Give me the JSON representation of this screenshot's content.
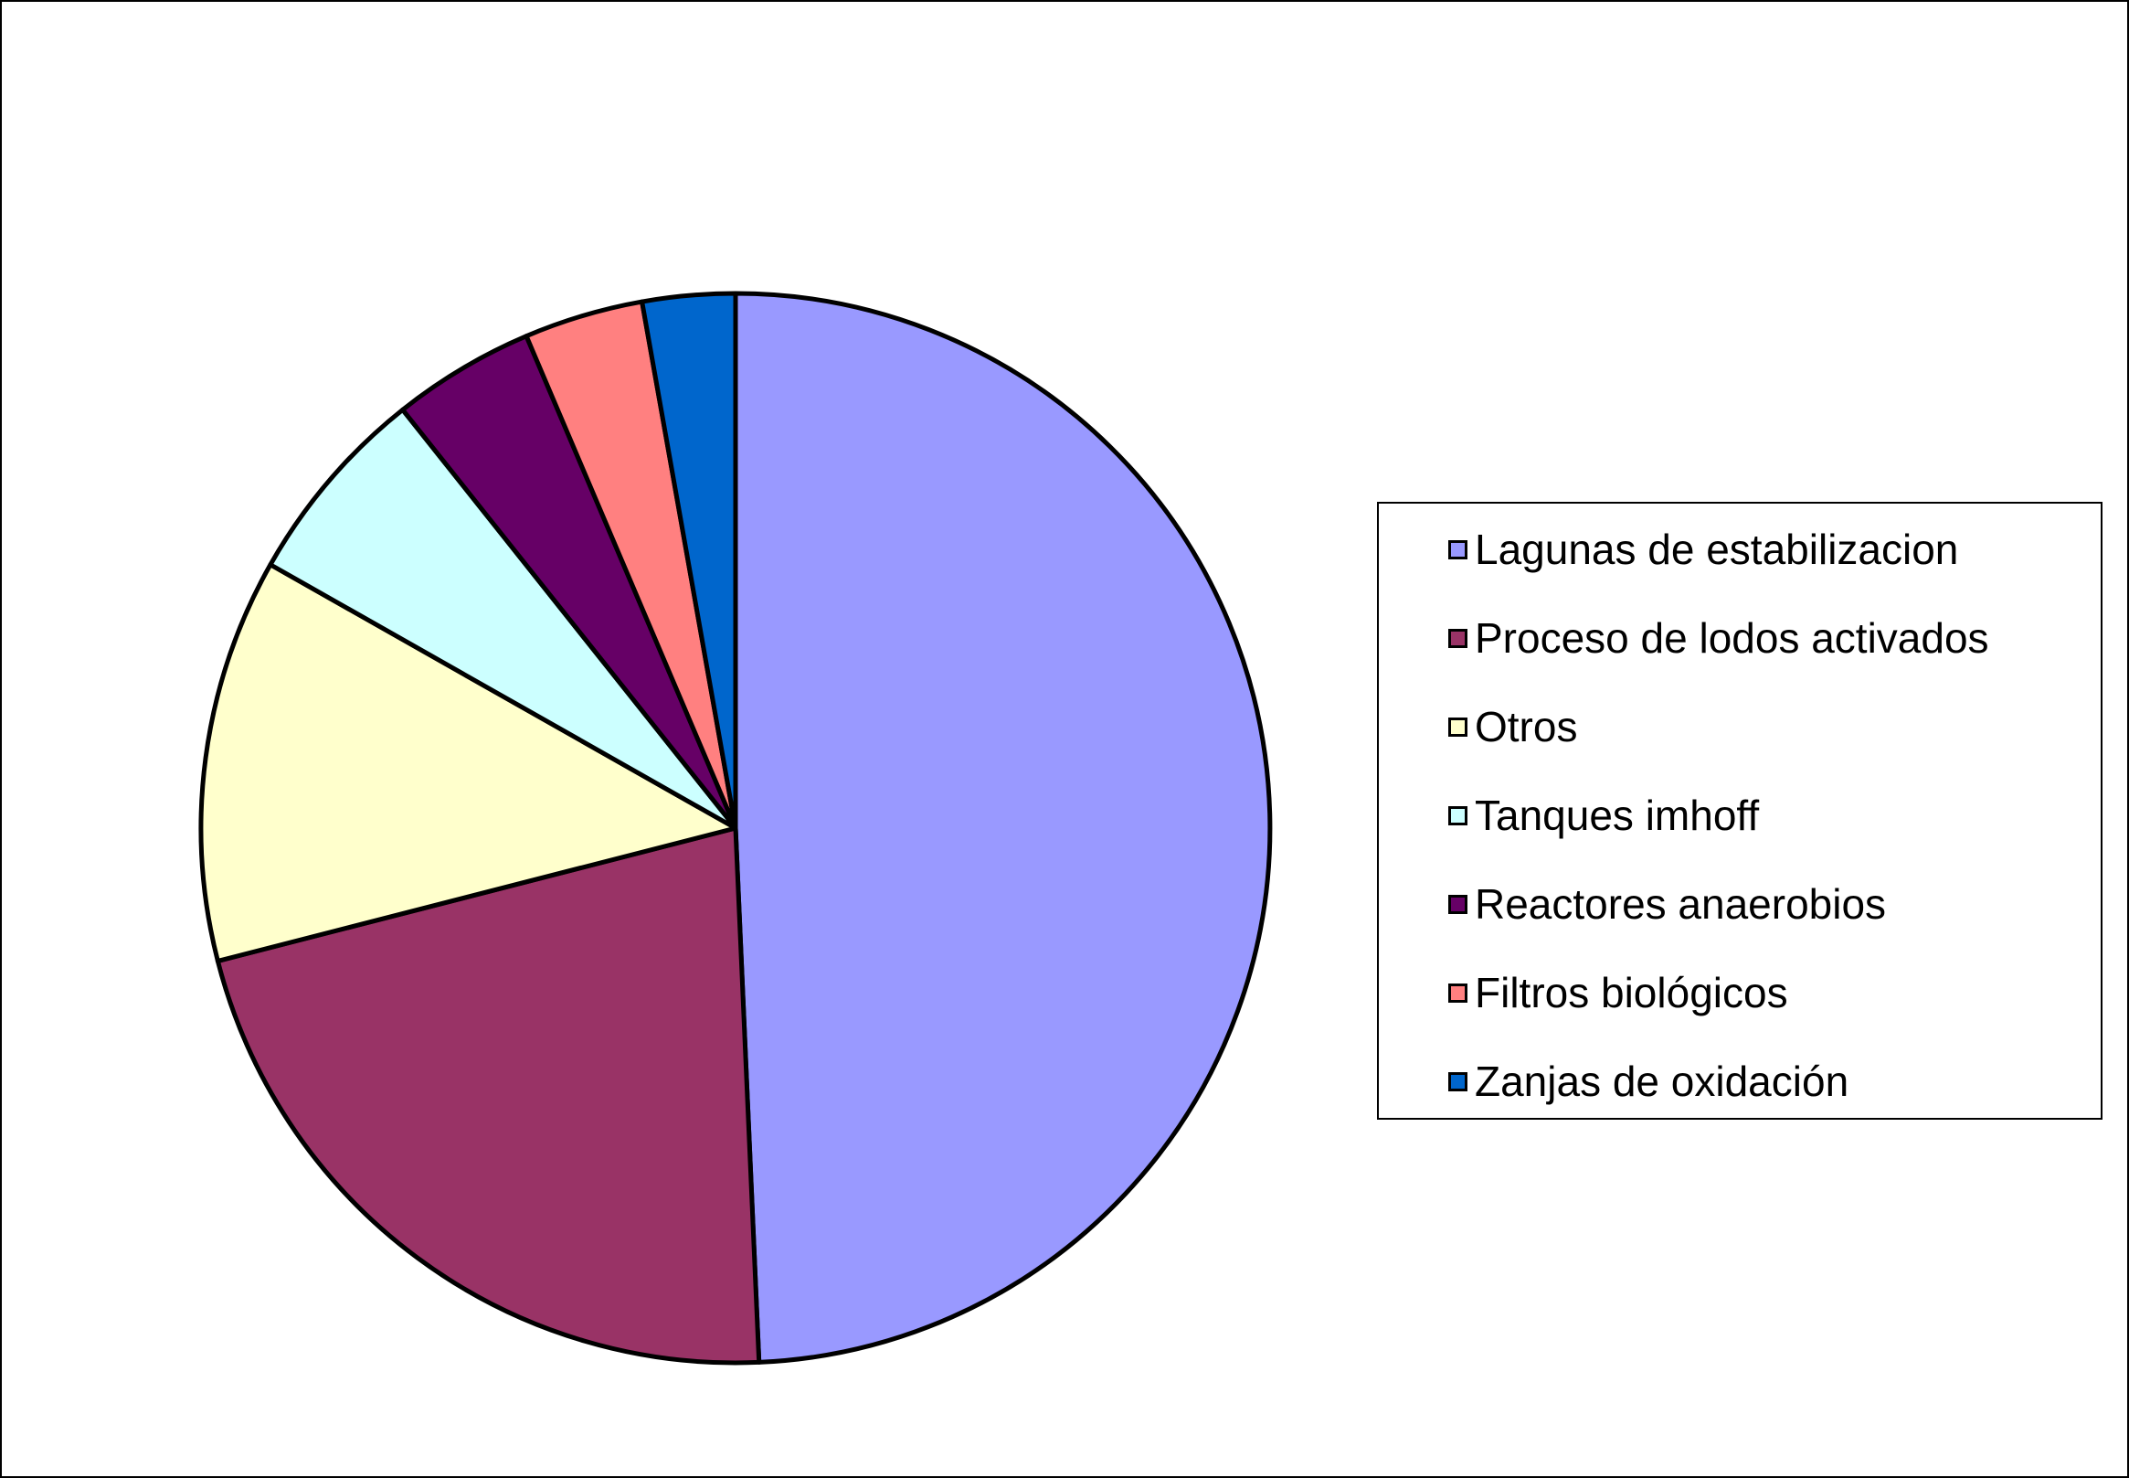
{
  "chart_data": {
    "type": "pie",
    "title": "",
    "start_angle": "12 o'clock",
    "direction": "clockwise",
    "legend_position": "right",
    "categories": [
      "Lagunas de estabilizacion",
      "Proceso de lodos activados",
      "Otros",
      "Tanques imhoff",
      "Reactores anaerobios",
      "Filtros biológicos",
      "Zanjas de oxidación"
    ],
    "values": [
      49.3,
      21.7,
      12.2,
      6.1,
      4.3,
      3.6,
      2.8
    ],
    "colors": [
      "#9999FF",
      "#993366",
      "#FFFFCC",
      "#CCFFFF",
      "#660066",
      "#FF8080",
      "#0066CC"
    ]
  }
}
